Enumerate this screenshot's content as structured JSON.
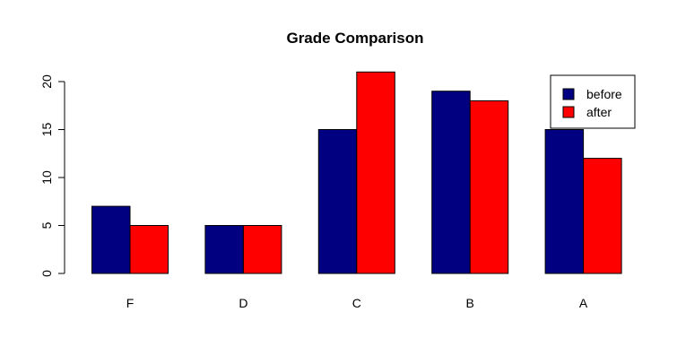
{
  "chart_data": {
    "type": "bar",
    "title": "Grade Comparison",
    "xlabel": "",
    "ylabel": "",
    "categories": [
      "F",
      "D",
      "C",
      "B",
      "A"
    ],
    "series": [
      {
        "name": "before",
        "values": [
          7,
          5,
          15,
          19,
          15
        ],
        "color": "#000080"
      },
      {
        "name": "after",
        "values": [
          5,
          5,
          21,
          18,
          12
        ],
        "color": "#ff0000"
      }
    ],
    "ylim": [
      0,
      22
    ],
    "y_ticks": [
      "0",
      "5",
      "10",
      "15",
      "20"
    ],
    "grid": false,
    "legend_position": "top-right",
    "bar_border_color": "#000000",
    "background": "#ffffff"
  }
}
